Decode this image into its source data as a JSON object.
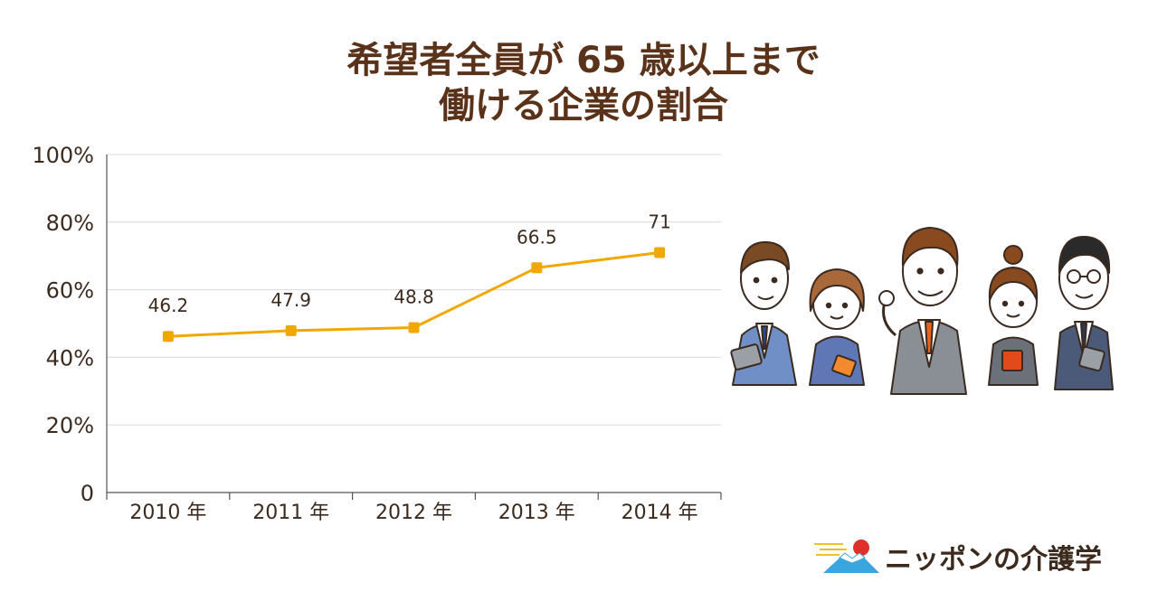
{
  "title": {
    "line1": "希望者全員が 65 歳以上まで",
    "line2": "働ける企業の割合"
  },
  "chart_data": {
    "type": "line",
    "categories": [
      "2010 年",
      "2011 年",
      "2012 年",
      "2013 年",
      "2014 年"
    ],
    "values": [
      46.2,
      47.9,
      48.8,
      66.5,
      71
    ],
    "value_labels": [
      "46.2",
      "47.9",
      "48.8",
      "66.5",
      "71"
    ],
    "ylim": [
      0,
      100
    ],
    "y_ticks": [
      0,
      20,
      40,
      60,
      80,
      100
    ],
    "y_tick_labels": [
      "0",
      "20%",
      "40%",
      "60%",
      "80%",
      "100%"
    ],
    "grid": true,
    "line_color": "#f0a800"
  },
  "logo": {
    "text": "ニッポンの介護学"
  }
}
